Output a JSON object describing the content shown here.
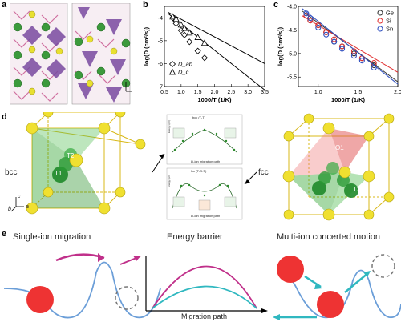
{
  "panels": {
    "a": {
      "label": "a"
    },
    "b": {
      "label": "b"
    },
    "c": {
      "label": "c"
    },
    "d": {
      "label": "d",
      "left_name": "bcc",
      "right_name": "fcc",
      "left_sites": [
        "T1",
        "T2"
      ],
      "right_sites": [
        "O1",
        "T1",
        "T2"
      ],
      "axes": {
        "c": "c",
        "b": "b",
        "a": "a"
      },
      "mini_charts": [
        {
          "title": "bcc (T-T)",
          "ylabel": "Energy (eV)",
          "xlabel": "Li-ion migration path"
        },
        {
          "title": "fcc (T-O-T)",
          "ylabel": "Energy (eV)",
          "xlabel": "Li-ion migration path"
        }
      ]
    },
    "e": {
      "label": "e",
      "headings": [
        "Single-ion migration",
        "Energy barrier",
        "Multi-ion concerted motion"
      ],
      "arrow_label": "Migration path"
    }
  },
  "chart_data": [
    {
      "type": "scatter",
      "panel": "b",
      "xlabel": "1000/T (1/K)",
      "ylabel": "log(D (cm²/s))",
      "xlim": [
        0.5,
        3.5
      ],
      "ylim": [
        -7,
        -3.5
      ],
      "xticks": [
        "0.5",
        "1.0",
        "1.5",
        "2.0",
        "2.5",
        "3.0",
        "3.5"
      ],
      "yticks": [
        "-4",
        "-5",
        "-6",
        "-7"
      ],
      "legend_position": "bottom-left",
      "series": [
        {
          "name": "D_ab",
          "marker": "diamond",
          "x": [
            0.75,
            0.85,
            1.0,
            1.1,
            1.25,
            1.5,
            1.7
          ],
          "y": [
            -4.0,
            -4.25,
            -4.55,
            -4.75,
            -5.05,
            -5.45,
            -5.75
          ],
          "fit": [
            [
              0.6,
              -3.8
            ],
            [
              3.5,
              -7.15
            ]
          ]
        },
        {
          "name": "D_c",
          "marker": "triangle",
          "x": [
            0.75,
            0.85,
            1.0,
            1.1,
            1.25,
            1.5,
            1.7
          ],
          "y": [
            -3.95,
            -4.05,
            -4.3,
            -4.45,
            -4.65,
            -4.85,
            -5.1
          ],
          "fit": [
            [
              0.6,
              -3.75
            ],
            [
              3.5,
              -6.0
            ]
          ]
        }
      ]
    },
    {
      "type": "scatter",
      "panel": "c",
      "xlabel": "1000/T (1/K)",
      "ylabel": "log(D (cm²/s))",
      "xlim": [
        0.75,
        2.0
      ],
      "ylim": [
        -5.7,
        -4.0
      ],
      "xticks": [
        "1.0",
        "1.5",
        "2.0"
      ],
      "yticks": [
        "-4.0",
        "-4.5",
        "-5.0",
        "-5.5"
      ],
      "legend_position": "top-right",
      "series": [
        {
          "name": "Ge",
          "color": "#333333",
          "x": [
            0.85,
            0.9,
            1.0,
            1.1,
            1.2,
            1.3,
            1.45,
            1.55,
            1.7
          ],
          "y": [
            -4.2,
            -4.3,
            -4.4,
            -4.55,
            -4.75,
            -4.85,
            -5.0,
            -5.1,
            -5.25
          ],
          "fit": [
            [
              0.8,
              -4.1
            ],
            [
              2.0,
              -5.6
            ]
          ]
        },
        {
          "name": "Si",
          "color": "#e03030",
          "x": [
            0.85,
            0.9,
            1.0,
            1.1,
            1.2,
            1.3,
            1.45,
            1.55,
            1.7
          ],
          "y": [
            -4.2,
            -4.3,
            -4.4,
            -4.55,
            -4.7,
            -4.85,
            -4.95,
            -5.1,
            -5.2
          ],
          "fit": [
            [
              0.8,
              -4.2
            ],
            [
              2.0,
              -5.4
            ]
          ]
        },
        {
          "name": "Sn",
          "color": "#3050c0",
          "x": [
            0.85,
            0.9,
            1.0,
            1.1,
            1.2,
            1.3,
            1.45,
            1.55,
            1.7
          ],
          "y": [
            -4.15,
            -4.25,
            -4.45,
            -4.6,
            -4.75,
            -4.9,
            -5.05,
            -5.15,
            -5.3
          ],
          "fit": [
            [
              0.8,
              -4.05
            ],
            [
              2.0,
              -5.65
            ]
          ]
        }
      ]
    }
  ]
}
